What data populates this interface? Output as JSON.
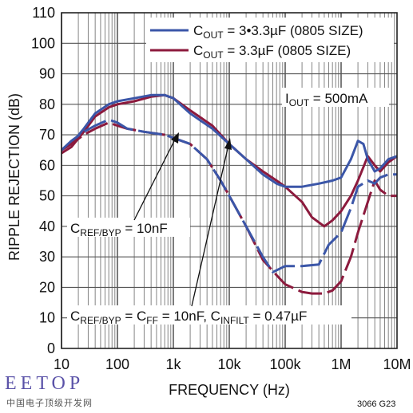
{
  "chart_data": {
    "type": "line",
    "xscale": "log",
    "xlim": [
      10,
      10000000
    ],
    "ylim": [
      0,
      110
    ],
    "xlabel": "FREQUENCY (Hz)",
    "ylabel": "RIPPLE REJECTION (dB)",
    "x_tick_labels": [
      "10",
      "100",
      "1k",
      "10k",
      "100k",
      "1M",
      "10M"
    ],
    "x_tick_values": [
      10,
      100,
      1000,
      10000,
      100000,
      1000000,
      10000000
    ],
    "y_ticks": [
      0,
      10,
      20,
      30,
      40,
      50,
      60,
      70,
      80,
      90,
      100,
      110
    ],
    "grid": true,
    "legend_position": "top-right",
    "legend": [
      {
        "main": "C",
        "sub": "OUT",
        "rest": " = 3•3.3µF (0805 SIZE)",
        "color": "#3b56a8"
      },
      {
        "main": "C",
        "sub": "OUT",
        "rest": " = 3.3µF (0805 SIZE)",
        "color": "#8c1a3d"
      }
    ],
    "condition_label": {
      "main": "I",
      "sub": "OUT",
      "rest": " = 500mA"
    },
    "annotations": [
      {
        "parts": [
          {
            "t": "C"
          },
          {
            "t": "REF/BYP",
            "sub": true
          },
          {
            "t": " = 10nF"
          }
        ]
      },
      {
        "parts": [
          {
            "t": "C"
          },
          {
            "t": "REF/BYP",
            "sub": true
          },
          {
            "t": " = C"
          },
          {
            "t": "FF",
            "sub": true
          },
          {
            "t": " = 10nF, C"
          },
          {
            "t": "INFILT",
            "sub": true
          },
          {
            "t": " = 0.47µF"
          }
        ]
      }
    ],
    "series": [
      {
        "color": "#8c1a3d",
        "dashed": false,
        "points": [
          [
            10,
            64
          ],
          [
            15,
            66
          ],
          [
            25,
            71
          ],
          [
            40,
            76
          ],
          [
            70,
            79
          ],
          [
            100,
            80
          ],
          [
            200,
            81
          ],
          [
            400,
            82.5
          ],
          [
            700,
            83
          ],
          [
            1000,
            82
          ],
          [
            2000,
            78
          ],
          [
            5000,
            73
          ],
          [
            10000,
            67
          ],
          [
            20000,
            62
          ],
          [
            40000,
            58
          ],
          [
            70000,
            55
          ],
          [
            100000,
            53
          ],
          [
            200000,
            48
          ],
          [
            300000,
            43
          ],
          [
            500000,
            40
          ],
          [
            700000,
            42
          ],
          [
            1000000,
            45
          ],
          [
            1500000,
            50
          ],
          [
            2000000,
            55
          ],
          [
            3000000,
            63
          ],
          [
            4000000,
            60
          ],
          [
            5000000,
            58
          ],
          [
            7000000,
            61
          ],
          [
            10000000,
            63
          ]
        ]
      },
      {
        "color": "#3b56a8",
        "dashed": false,
        "points": [
          [
            10,
            65
          ],
          [
            15,
            67
          ],
          [
            25,
            72
          ],
          [
            40,
            77
          ],
          [
            70,
            80
          ],
          [
            100,
            81
          ],
          [
            200,
            82
          ],
          [
            400,
            83
          ],
          [
            700,
            83
          ],
          [
            1000,
            82
          ],
          [
            2000,
            77
          ],
          [
            5000,
            72
          ],
          [
            10000,
            67
          ],
          [
            20000,
            62
          ],
          [
            40000,
            57
          ],
          [
            70000,
            54
          ],
          [
            100000,
            53
          ],
          [
            200000,
            53
          ],
          [
            400000,
            54
          ],
          [
            700000,
            55
          ],
          [
            1000000,
            56
          ],
          [
            1500000,
            62
          ],
          [
            2000000,
            68
          ],
          [
            2500000,
            67
          ],
          [
            3000000,
            62
          ],
          [
            4000000,
            58
          ],
          [
            5000000,
            59
          ],
          [
            7000000,
            62
          ],
          [
            10000000,
            63
          ]
        ]
      },
      {
        "color": "#8c1a3d",
        "dashed": true,
        "points": [
          [
            10,
            65
          ],
          [
            15,
            67
          ],
          [
            25,
            70
          ],
          [
            40,
            72
          ],
          [
            70,
            74
          ],
          [
            100,
            73
          ],
          [
            150,
            72
          ],
          [
            300,
            71
          ],
          [
            700,
            70
          ],
          [
            1000,
            69
          ],
          [
            2000,
            67
          ],
          [
            4000,
            62
          ],
          [
            7000,
            55
          ],
          [
            10000,
            50
          ],
          [
            20000,
            40
          ],
          [
            40000,
            29
          ],
          [
            70000,
            24
          ],
          [
            100000,
            21
          ],
          [
            200000,
            18.5
          ],
          [
            300000,
            18
          ],
          [
            500000,
            18
          ],
          [
            700000,
            19
          ],
          [
            1000000,
            22
          ],
          [
            1500000,
            30
          ],
          [
            2000000,
            38
          ],
          [
            3000000,
            48
          ],
          [
            4000000,
            55
          ],
          [
            5000000,
            52
          ],
          [
            7000000,
            50
          ],
          [
            10000000,
            50
          ]
        ]
      },
      {
        "color": "#3b56a8",
        "dashed": true,
        "points": [
          [
            10,
            65
          ],
          [
            15,
            68
          ],
          [
            25,
            71
          ],
          [
            40,
            73
          ],
          [
            70,
            75
          ],
          [
            100,
            74
          ],
          [
            150,
            72
          ],
          [
            300,
            71
          ],
          [
            700,
            70
          ],
          [
            1000,
            69
          ],
          [
            2000,
            67
          ],
          [
            4000,
            62
          ],
          [
            7000,
            55
          ],
          [
            10000,
            50
          ],
          [
            20000,
            40
          ],
          [
            40000,
            30
          ],
          [
            60000,
            25
          ],
          [
            100000,
            27
          ],
          [
            200000,
            27
          ],
          [
            400000,
            27.5
          ],
          [
            600000,
            34
          ],
          [
            1000000,
            38
          ],
          [
            1500000,
            46
          ],
          [
            2000000,
            53
          ],
          [
            3000000,
            55
          ],
          [
            4000000,
            54
          ],
          [
            5000000,
            56
          ],
          [
            7000000,
            57
          ],
          [
            10000000,
            57
          ]
        ]
      }
    ]
  },
  "watermark": {
    "brand": "EETOP",
    "tagline": "中国电子顶级开发网"
  },
  "figure_id": "3066 G23"
}
